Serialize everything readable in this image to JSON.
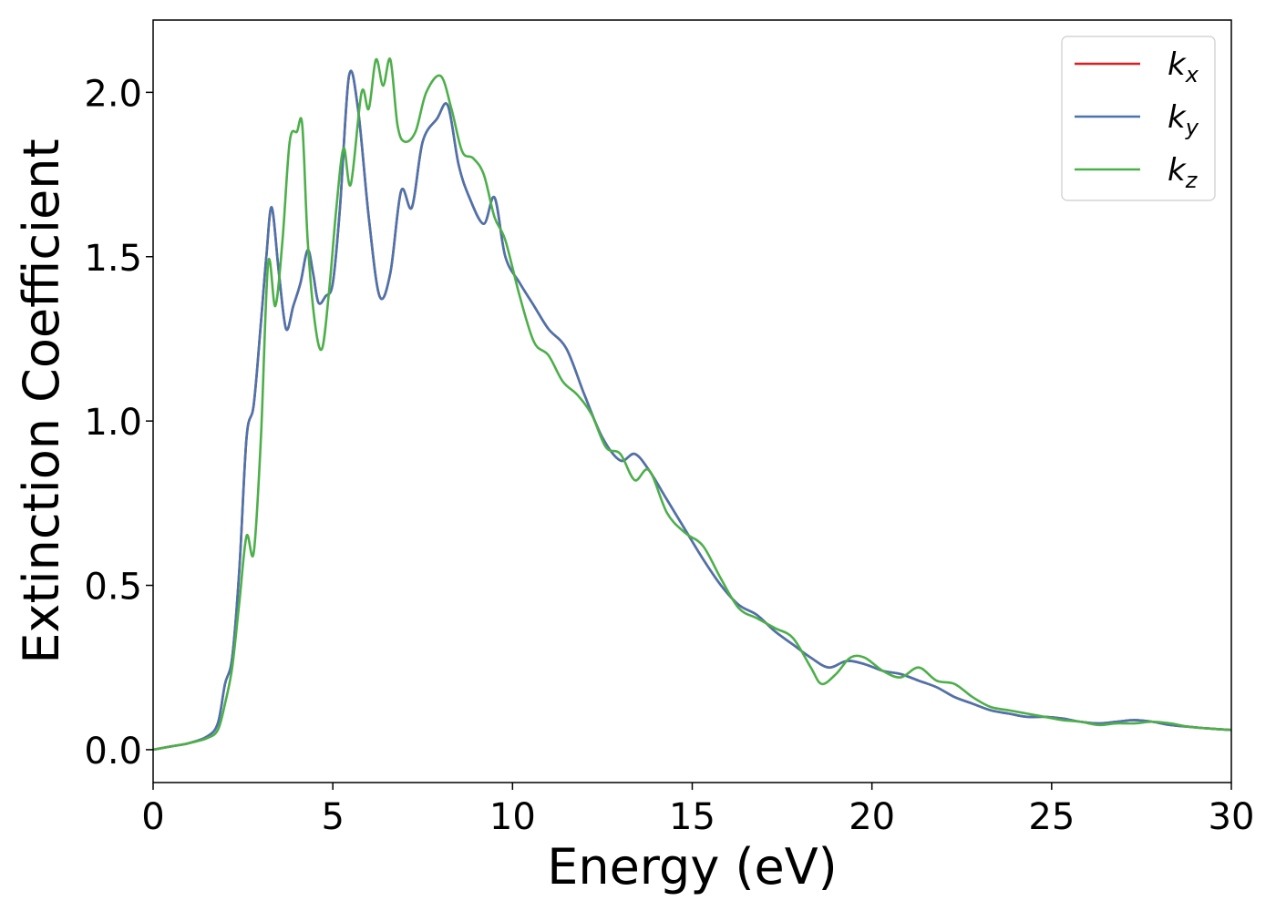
{
  "chart_data": {
    "type": "line",
    "title": "",
    "xlabel": "Energy (eV)",
    "ylabel": "Extinction Coefficient",
    "xlim": [
      0,
      30
    ],
    "ylim": [
      -0.1,
      2.22
    ],
    "xticks": [
      0,
      5,
      10,
      15,
      20,
      25,
      30
    ],
    "xtick_labels": [
      "0",
      "5",
      "10",
      "15",
      "20",
      "25",
      "30"
    ],
    "yticks": [
      0.0,
      0.5,
      1.0,
      1.5,
      2.0
    ],
    "ytick_labels": [
      "0.0",
      "0.5",
      "1.0",
      "1.5",
      "2.0"
    ],
    "grid": false,
    "legend_position": "top-right",
    "series": [
      {
        "name": "k_x",
        "label_base": "k",
        "label_sub": "x",
        "color": "#e41a1c",
        "x": [
          0,
          0.5,
          1,
          1.5,
          1.8,
          2,
          2.2,
          2.4,
          2.6,
          2.8,
          3,
          3.15,
          3.3,
          3.5,
          3.7,
          3.9,
          4.1,
          4.3,
          4.45,
          4.6,
          4.8,
          5,
          5.2,
          5.45,
          5.7,
          6,
          6.3,
          6.6,
          6.9,
          7.2,
          7.5,
          7.9,
          8.2,
          8.5,
          8.8,
          9.2,
          9.5,
          9.8,
          10.2,
          10.6,
          11,
          11.5,
          12,
          12.5,
          13,
          13.4,
          13.8,
          14.3,
          14.8,
          15.3,
          15.8,
          16.3,
          16.8,
          17.3,
          17.8,
          18.3,
          18.8,
          19.3,
          19.8,
          20.3,
          20.8,
          21.3,
          21.8,
          22.3,
          22.8,
          23.3,
          23.8,
          24.3,
          24.8,
          25.3,
          25.8,
          26.3,
          26.8,
          27.3,
          27.8,
          28.3,
          28.8,
          29.3,
          30
        ],
        "y": [
          0,
          0.01,
          0.02,
          0.04,
          0.08,
          0.2,
          0.28,
          0.55,
          0.95,
          1.05,
          1.3,
          1.5,
          1.65,
          1.45,
          1.28,
          1.35,
          1.42,
          1.52,
          1.45,
          1.36,
          1.38,
          1.42,
          1.65,
          2.05,
          1.95,
          1.62,
          1.38,
          1.45,
          1.7,
          1.65,
          1.85,
          1.92,
          1.96,
          1.78,
          1.68,
          1.6,
          1.68,
          1.5,
          1.42,
          1.35,
          1.28,
          1.22,
          1.08,
          0.95,
          0.88,
          0.9,
          0.85,
          0.76,
          0.67,
          0.58,
          0.5,
          0.44,
          0.41,
          0.36,
          0.32,
          0.28,
          0.25,
          0.27,
          0.26,
          0.24,
          0.23,
          0.21,
          0.19,
          0.16,
          0.14,
          0.12,
          0.11,
          0.1,
          0.1,
          0.095,
          0.085,
          0.08,
          0.085,
          0.09,
          0.085,
          0.075,
          0.07,
          0.065,
          0.06
        ]
      },
      {
        "name": "k_y",
        "label_base": "k",
        "label_sub": "y",
        "color": "#4a74ad",
        "x": [
          0,
          0.5,
          1,
          1.5,
          1.8,
          2,
          2.2,
          2.4,
          2.6,
          2.8,
          3,
          3.15,
          3.3,
          3.5,
          3.7,
          3.9,
          4.1,
          4.3,
          4.45,
          4.6,
          4.8,
          5,
          5.2,
          5.45,
          5.7,
          6,
          6.3,
          6.6,
          6.9,
          7.2,
          7.5,
          7.9,
          8.2,
          8.5,
          8.8,
          9.2,
          9.5,
          9.8,
          10.2,
          10.6,
          11,
          11.5,
          12,
          12.5,
          13,
          13.4,
          13.8,
          14.3,
          14.8,
          15.3,
          15.8,
          16.3,
          16.8,
          17.3,
          17.8,
          18.3,
          18.8,
          19.3,
          19.8,
          20.3,
          20.8,
          21.3,
          21.8,
          22.3,
          22.8,
          23.3,
          23.8,
          24.3,
          24.8,
          25.3,
          25.8,
          26.3,
          26.8,
          27.3,
          27.8,
          28.3,
          28.8,
          29.3,
          30
        ],
        "y": [
          0,
          0.01,
          0.02,
          0.04,
          0.08,
          0.2,
          0.28,
          0.55,
          0.95,
          1.05,
          1.3,
          1.5,
          1.65,
          1.45,
          1.28,
          1.35,
          1.42,
          1.52,
          1.45,
          1.36,
          1.38,
          1.42,
          1.65,
          2.05,
          1.95,
          1.62,
          1.38,
          1.45,
          1.7,
          1.65,
          1.85,
          1.92,
          1.96,
          1.78,
          1.68,
          1.6,
          1.68,
          1.5,
          1.42,
          1.35,
          1.28,
          1.22,
          1.08,
          0.95,
          0.88,
          0.9,
          0.85,
          0.76,
          0.67,
          0.58,
          0.5,
          0.44,
          0.41,
          0.36,
          0.32,
          0.28,
          0.25,
          0.27,
          0.26,
          0.24,
          0.23,
          0.21,
          0.19,
          0.16,
          0.14,
          0.12,
          0.11,
          0.1,
          0.1,
          0.095,
          0.085,
          0.08,
          0.085,
          0.09,
          0.085,
          0.075,
          0.07,
          0.065,
          0.06
        ]
      },
      {
        "name": "k_z",
        "label_base": "k",
        "label_sub": "z",
        "color": "#4daf4a",
        "x": [
          0,
          0.5,
          1,
          1.5,
          1.8,
          2,
          2.2,
          2.4,
          2.6,
          2.8,
          3,
          3.2,
          3.4,
          3.6,
          3.8,
          4,
          4.15,
          4.3,
          4.5,
          4.7,
          4.9,
          5.1,
          5.3,
          5.5,
          5.8,
          6,
          6.2,
          6.4,
          6.6,
          6.8,
          7,
          7.3,
          7.6,
          8,
          8.3,
          8.6,
          8.9,
          9.2,
          9.5,
          9.8,
          10.2,
          10.6,
          11,
          11.4,
          11.8,
          12.2,
          12.6,
          13,
          13.4,
          13.8,
          14.3,
          14.8,
          15.3,
          15.8,
          16.3,
          16.8,
          17.3,
          17.8,
          18.3,
          18.6,
          19,
          19.4,
          19.8,
          20.3,
          20.8,
          21.3,
          21.8,
          22.3,
          22.8,
          23.3,
          23.8,
          24.3,
          24.8,
          25.3,
          25.8,
          26.3,
          26.8,
          27.3,
          27.8,
          28.3,
          28.8,
          29.3,
          30
        ],
        "y": [
          0,
          0.01,
          0.02,
          0.035,
          0.06,
          0.14,
          0.25,
          0.45,
          0.65,
          0.6,
          0.95,
          1.48,
          1.35,
          1.55,
          1.85,
          1.88,
          1.9,
          1.55,
          1.3,
          1.22,
          1.4,
          1.65,
          1.83,
          1.72,
          2.0,
          1.95,
          2.1,
          2.02,
          2.1,
          1.9,
          1.85,
          1.88,
          2.0,
          2.05,
          1.95,
          1.82,
          1.8,
          1.75,
          1.62,
          1.55,
          1.38,
          1.24,
          1.2,
          1.12,
          1.08,
          1.02,
          0.92,
          0.9,
          0.82,
          0.85,
          0.72,
          0.66,
          0.62,
          0.52,
          0.43,
          0.4,
          0.37,
          0.34,
          0.25,
          0.2,
          0.23,
          0.28,
          0.28,
          0.24,
          0.22,
          0.25,
          0.21,
          0.2,
          0.16,
          0.13,
          0.12,
          0.11,
          0.1,
          0.09,
          0.085,
          0.075,
          0.08,
          0.08,
          0.085,
          0.08,
          0.07,
          0.065,
          0.06
        ]
      }
    ]
  }
}
